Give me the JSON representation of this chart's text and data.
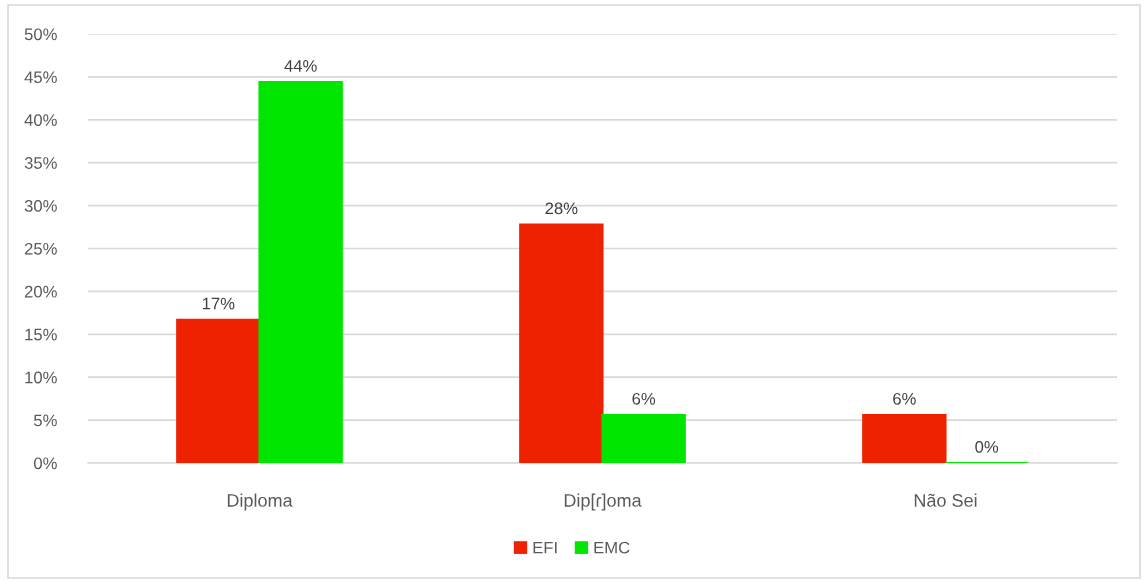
{
  "chart_data": {
    "type": "bar",
    "categories": [
      "Diploma",
      "Dip[ɾ]oma",
      "Não Sei"
    ],
    "series": [
      {
        "name": "EFI",
        "color": "#ee2200",
        "values": [
          16.7,
          27.8,
          5.6
        ],
        "value_labels": [
          "17%",
          "28%",
          "6%"
        ]
      },
      {
        "name": "EMC",
        "color": "#00e600",
        "values": [
          44.4,
          5.6,
          0
        ],
        "value_labels": [
          "44%",
          "6%",
          "0%"
        ]
      }
    ],
    "ylim": [
      0,
      50
    ],
    "yticks": [
      {
        "value": 0,
        "label": "0%"
      },
      {
        "value": 5,
        "label": "5%"
      },
      {
        "value": 10,
        "label": "10%"
      },
      {
        "value": 15,
        "label": "15%"
      },
      {
        "value": 20,
        "label": "20%"
      },
      {
        "value": 25,
        "label": "25%"
      },
      {
        "value": 30,
        "label": "30%"
      },
      {
        "value": 35,
        "label": "35%"
      },
      {
        "value": 40,
        "label": "40%"
      },
      {
        "value": 45,
        "label": "45%"
      },
      {
        "value": 50,
        "label": "50%"
      }
    ],
    "grid": "y",
    "legend": "bottom"
  }
}
